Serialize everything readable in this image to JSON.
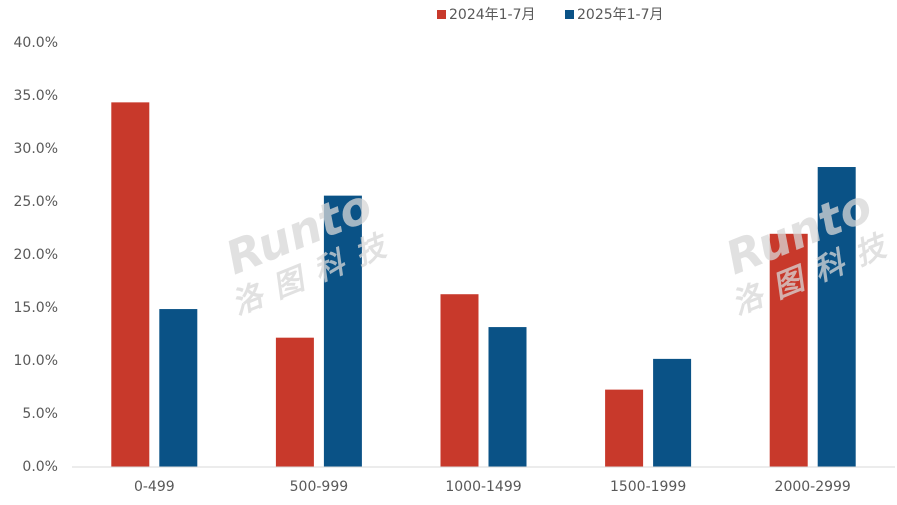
{
  "chart_data": {
    "type": "bar",
    "categories": [
      "0-499",
      "500-999",
      "1000-1499",
      "1500-1999",
      "2000-2999"
    ],
    "series": [
      {
        "name": "2024年1-7月",
        "color": "#c8392b",
        "values": [
          34.4,
          12.2,
          16.3,
          7.3,
          22.0
        ]
      },
      {
        "name": "2025年1-7月",
        "color": "#0a5286",
        "values": [
          14.9,
          25.6,
          13.2,
          10.2,
          28.3
        ]
      }
    ],
    "ylim": [
      0,
      40
    ],
    "yticks": [
      {
        "value": 0,
        "label": "0.0%"
      },
      {
        "value": 5,
        "label": "5.0%"
      },
      {
        "value": 10,
        "label": "10.0%"
      },
      {
        "value": 15,
        "label": "15.0%"
      },
      {
        "value": 20,
        "label": "20.0%"
      },
      {
        "value": 25,
        "label": "25.0%"
      },
      {
        "value": 30,
        "label": "30.0%"
      },
      {
        "value": 35,
        "label": "35.0%"
      },
      {
        "value": 40,
        "label": "40.0%"
      }
    ],
    "grid": false,
    "legend": "top",
    "watermark": [
      "Runto",
      "洛图科技"
    ]
  }
}
